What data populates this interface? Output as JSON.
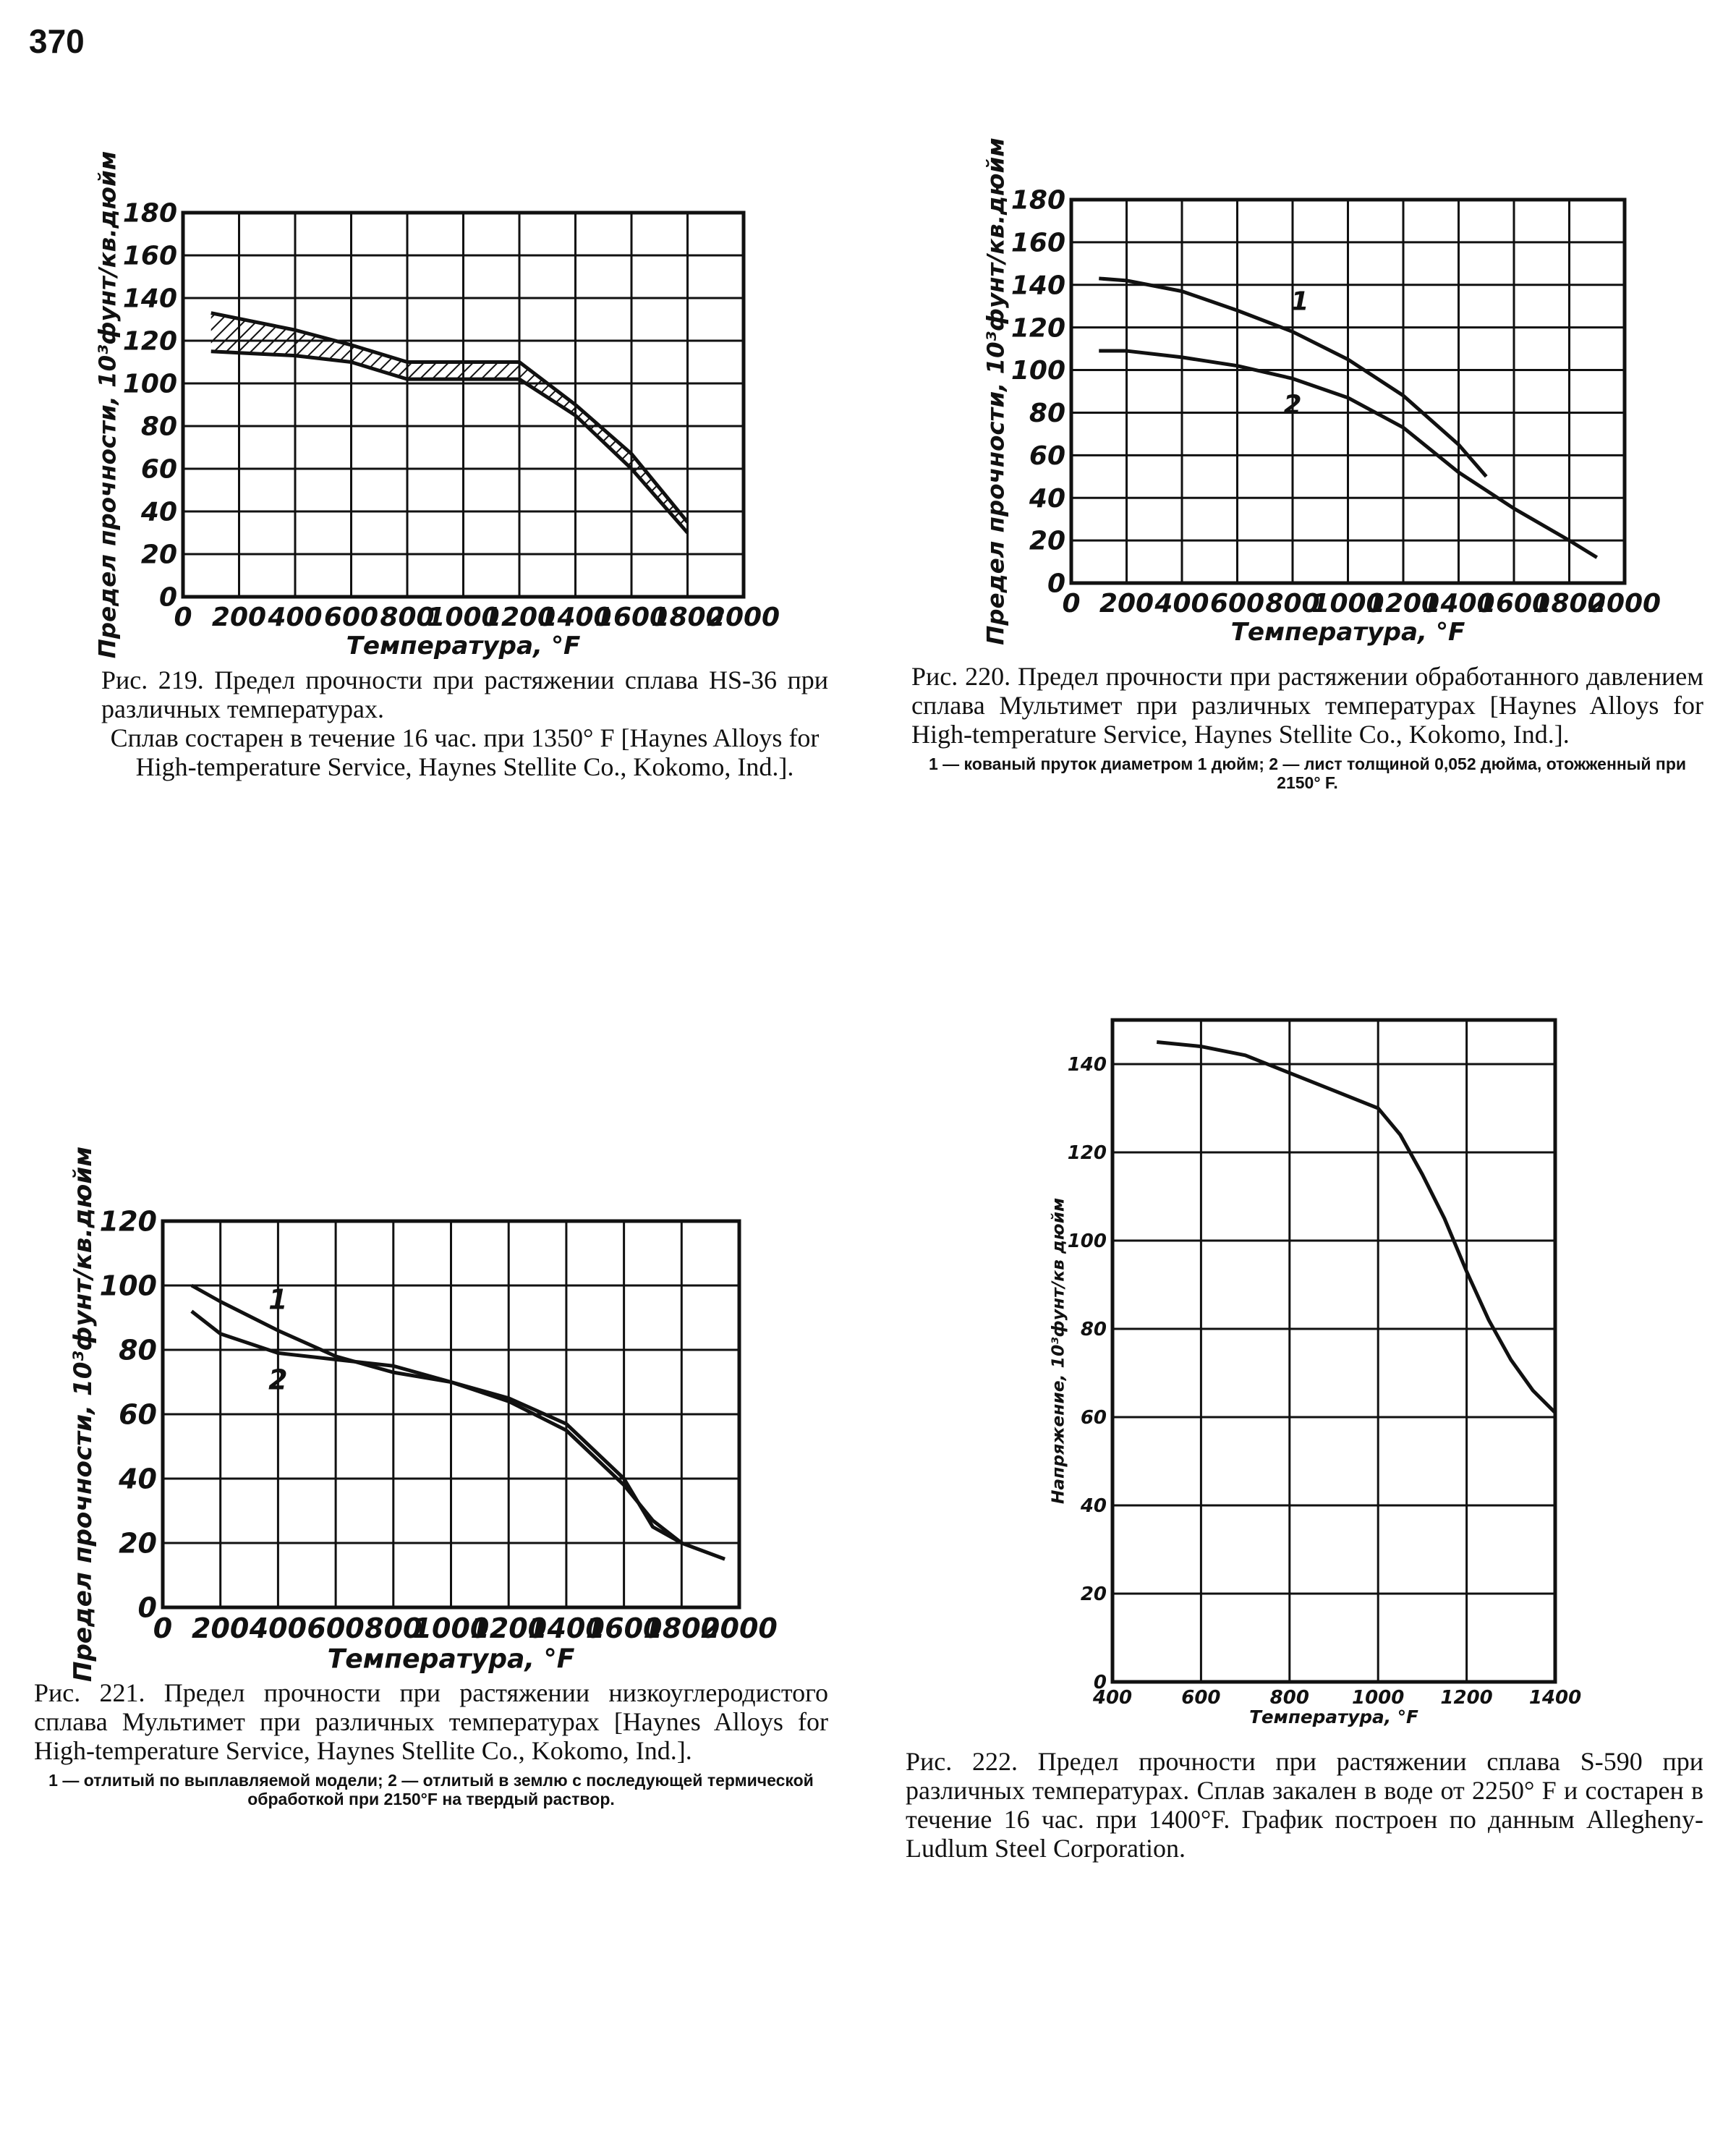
{
  "page_number": "370",
  "chart_data": [
    {
      "type": "band",
      "caption": "Рис. 219. Предел прочности при растяжении сплава HS-36 при различных температурах.",
      "note": "Сплав состарен в течение 16 час. при 1350° F [Haynes Alloys for High-temperature Service, Haynes Stellite Co., Kokomo, Ind.].",
      "x_label": "Температура, °F",
      "y_label": "Предел прочности, 10³фунт/кв.дюйм",
      "xlim": [
        0,
        2000
      ],
      "ylim": [
        0,
        180
      ],
      "xticks": [
        0,
        200,
        400,
        600,
        800,
        1000,
        1200,
        1400,
        1600,
        1800,
        2000
      ],
      "yticks": [
        0,
        20,
        40,
        60,
        80,
        100,
        120,
        140,
        160,
        180
      ],
      "grid": true,
      "series": [
        {
          "x": [
            100,
            400,
            600,
            800,
            1000,
            1200,
            1400,
            1600,
            1800
          ],
          "values": [
            133,
            125,
            118,
            110,
            110,
            110,
            90,
            67,
            35
          ],
          "color": "#111111"
        },
        {
          "x": [
            100,
            400,
            600,
            800,
            1000,
            1200,
            1400,
            1600,
            1800
          ],
          "values": [
            115,
            113,
            110,
            102,
            102,
            102,
            85,
            60,
            30
          ],
          "color": "#111111"
        }
      ]
    },
    {
      "type": "line",
      "caption": "Рис. 220. Предел прочности при растяжении обработанного давлением сплава Мультимет при различных температурах [Haynes Alloys for High-temperature Service, Haynes Stellite Co., Kokomo, Ind.].",
      "note": "1 — кованый пруток диаметром 1 дюйм; 2 — лист толщиной 0,052 дюйма, отожженный при 2150° F.",
      "x_label": "Температура, °F",
      "y_label": "Предел прочности, 10³фунт/кв.дюйм",
      "xlim": [
        0,
        2000
      ],
      "ylim": [
        0,
        180
      ],
      "xticks": [
        0,
        200,
        400,
        600,
        800,
        1000,
        1200,
        1400,
        1600,
        1800,
        2000
      ],
      "yticks": [
        0,
        20,
        40,
        60,
        80,
        100,
        120,
        140,
        160,
        180
      ],
      "grid": true,
      "series": [
        {
          "name": "1",
          "x": [
            100,
            200,
            400,
            600,
            800,
            1000,
            1200,
            1400,
            1500
          ],
          "values": [
            143,
            142,
            137,
            128,
            118,
            105,
            88,
            65,
            50
          ],
          "color": "#111111"
        },
        {
          "name": "2",
          "x": [
            100,
            200,
            400,
            600,
            800,
            1000,
            1200,
            1400,
            1600,
            1800,
            1900
          ],
          "values": [
            109,
            109,
            106,
            102,
            96,
            87,
            73,
            52,
            35,
            20,
            12
          ],
          "color": "#111111"
        }
      ]
    },
    {
      "type": "line",
      "caption": "Рис. 221. Предел прочности при растяжении низкоуглеродистого сплава Мультимет при различных температурах [Haynes Alloys for High-temperature Service, Haynes Stellite Co., Kokomo, Ind.].",
      "note": "1 — отлитый по выплавляемой модели; 2 — отлитый в землю с последующей термической обработкой при 2150°F на твердый раствор.",
      "x_label": "Температура, °F",
      "y_label": "Предел прочности, 10³фунт/кв.дюйм",
      "xlim": [
        0,
        2000
      ],
      "ylim": [
        0,
        120
      ],
      "xticks": [
        0,
        200,
        400,
        600,
        800,
        1000,
        1200,
        1400,
        1600,
        1800,
        2000
      ],
      "yticks": [
        0,
        20,
        40,
        60,
        80,
        100,
        120
      ],
      "grid": true,
      "series": [
        {
          "name": "1",
          "x": [
            100,
            200,
            400,
            600,
            800,
            1000,
            1200,
            1400,
            1600,
            1700,
            1800
          ],
          "values": [
            100,
            95,
            86,
            78,
            73,
            70,
            64,
            55,
            38,
            27,
            20
          ],
          "color": "#111111"
        },
        {
          "name": "2",
          "x": [
            100,
            200,
            400,
            600,
            800,
            1000,
            1200,
            1400,
            1600,
            1700,
            1800,
            1950
          ],
          "values": [
            92,
            85,
            79,
            77,
            75,
            70,
            65,
            57,
            40,
            25,
            20,
            15
          ],
          "color": "#111111"
        }
      ]
    },
    {
      "type": "line",
      "caption": "Рис. 222. Предел прочности при растяжении сплава S-590 при различных температурах. Сплав закален в воде от 2250° F и состарен в течение 16 час. при 1400°F. График построен по данным Allegheny-Ludlum Steel Corporation.",
      "x_label": "Температура, °F",
      "y_label": "Напряжение, 10³фунт/кв дюйм",
      "xlim": [
        400,
        1400
      ],
      "ylim": [
        0,
        150
      ],
      "xticks": [
        400,
        600,
        800,
        1000,
        1200,
        1400
      ],
      "yticks": [
        0,
        20,
        40,
        60,
        80,
        100,
        120,
        140
      ],
      "grid": true,
      "series": [
        {
          "x": [
            500,
            600,
            700,
            800,
            900,
            1000,
            1050,
            1100,
            1150,
            1200,
            1250,
            1300,
            1350,
            1400
          ],
          "values": [
            145,
            144,
            142,
            138,
            134,
            130,
            124,
            115,
            105,
            93,
            82,
            73,
            66,
            61
          ],
          "color": "#111111"
        }
      ]
    }
  ]
}
